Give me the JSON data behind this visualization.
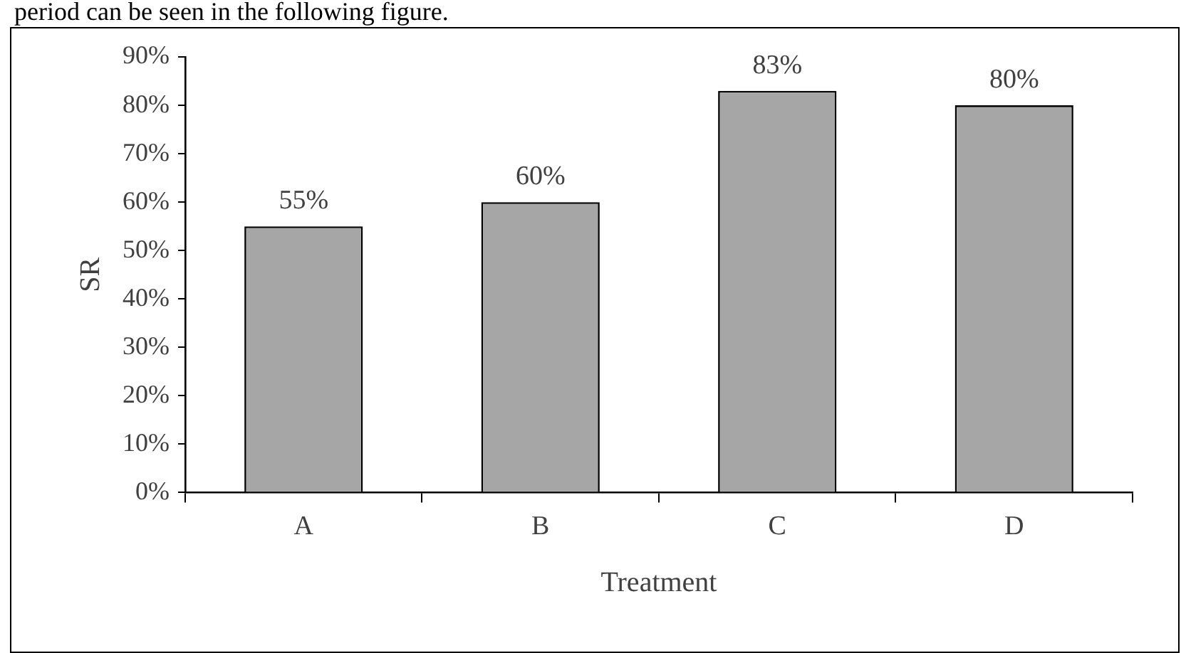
{
  "chart_data": {
    "type": "bar",
    "annotations": [
      "period can be seen in the following figure."
    ],
    "xlabel": "Treatment",
    "ylabel": "SR",
    "categories": [
      "A",
      "B",
      "C",
      "D"
    ],
    "values": [
      55,
      60,
      83,
      80
    ],
    "color": "#a6a6a6",
    "value_labels": [
      "55%",
      "60%",
      "83%",
      "80%"
    ],
    "ylim": [
      0,
      90
    ],
    "yticks": [
      {
        "value": 0,
        "label": "0%"
      },
      {
        "value": 10,
        "label": "10%"
      },
      {
        "value": 20,
        "label": "20%"
      },
      {
        "value": 30,
        "label": "30%"
      },
      {
        "value": 40,
        "label": "40%"
      },
      {
        "value": 50,
        "label": "50%"
      },
      {
        "value": 60,
        "label": "60%"
      },
      {
        "value": 70,
        "label": "70%"
      },
      {
        "value": 80,
        "label": "80%"
      },
      {
        "value": 90,
        "label": "90%"
      }
    ],
    "grid": false,
    "legend": false
  }
}
